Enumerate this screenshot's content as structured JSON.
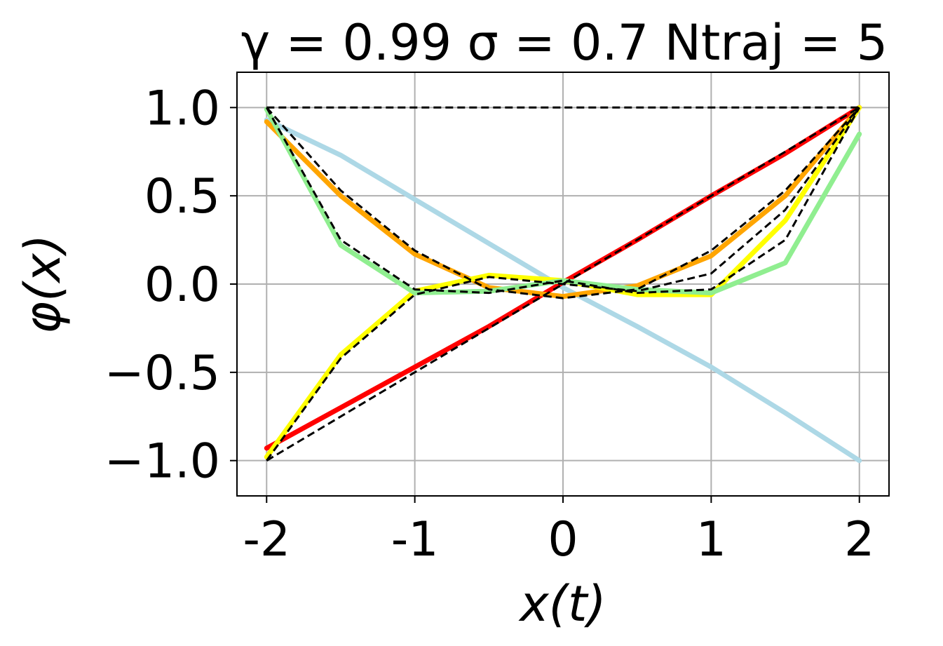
{
  "chart_data": {
    "type": "line",
    "title": "γ = 0.99 σ = 0.7 Ntraj = 5",
    "xlabel": "x(t)",
    "ylabel": "φ(x)",
    "xlim": [
      -2.2,
      2.2
    ],
    "ylim": [
      -1.2,
      1.2
    ],
    "grid": true,
    "x_ticks": [
      -2,
      -1,
      0,
      1,
      2
    ],
    "x_tick_labels": [
      "-2",
      "-1",
      "0",
      "1",
      "2"
    ],
    "y_ticks": [
      -1.0,
      -0.5,
      0.0,
      0.5,
      1.0
    ],
    "y_tick_labels": [
      "−1.0",
      "−0.5",
      "0.0",
      "0.5",
      "1.0"
    ],
    "x": [
      -2.0,
      -1.5,
      -1.0,
      -0.5,
      0.0,
      0.5,
      1.0,
      1.5,
      2.0
    ],
    "series": [
      {
        "color": "#add8e6",
        "style": "solid",
        "values": [
          0.93,
          0.73,
          0.48,
          0.23,
          -0.02,
          -0.24,
          -0.47,
          -0.73,
          -1.0
        ]
      },
      {
        "color": "#ff0000",
        "style": "solid",
        "values": [
          -0.93,
          -0.7,
          -0.47,
          -0.24,
          0.01,
          0.25,
          0.5,
          0.74,
          1.0
        ]
      },
      {
        "color": "#ffa500",
        "style": "solid",
        "values": [
          0.92,
          0.5,
          0.17,
          -0.02,
          -0.07,
          -0.01,
          0.16,
          0.5,
          1.0
        ]
      },
      {
        "color": "#ffff00",
        "style": "solid",
        "values": [
          -0.98,
          -0.4,
          -0.04,
          0.05,
          0.02,
          -0.06,
          -0.06,
          0.36,
          1.0
        ]
      },
      {
        "color": "#90ee90",
        "style": "solid",
        "values": [
          0.99,
          0.22,
          -0.05,
          -0.04,
          0.02,
          -0.03,
          -0.05,
          0.12,
          0.85
        ]
      },
      {
        "color": "#000000",
        "style": "dashed",
        "values": [
          1.0,
          1.0,
          1.0,
          1.0,
          1.0,
          1.0,
          1.0,
          1.0,
          1.0
        ]
      },
      {
        "color": "#000000",
        "style": "dashed",
        "values": [
          -1.0,
          -0.75,
          -0.5,
          -0.25,
          0.0,
          0.25,
          0.5,
          0.75,
          1.0
        ]
      },
      {
        "color": "#000000",
        "style": "dashed",
        "values": [
          1.0,
          0.53,
          0.19,
          -0.03,
          -0.08,
          -0.03,
          0.19,
          0.53,
          1.0
        ]
      },
      {
        "color": "#000000",
        "style": "dashed",
        "values": [
          -1.0,
          -0.42,
          -0.06,
          0.04,
          0.0,
          -0.04,
          0.06,
          0.42,
          1.0
        ]
      },
      {
        "color": "#000000",
        "style": "dashed",
        "values": [
          1.0,
          0.25,
          -0.03,
          -0.05,
          0.02,
          -0.05,
          -0.03,
          0.25,
          1.0
        ]
      }
    ]
  }
}
